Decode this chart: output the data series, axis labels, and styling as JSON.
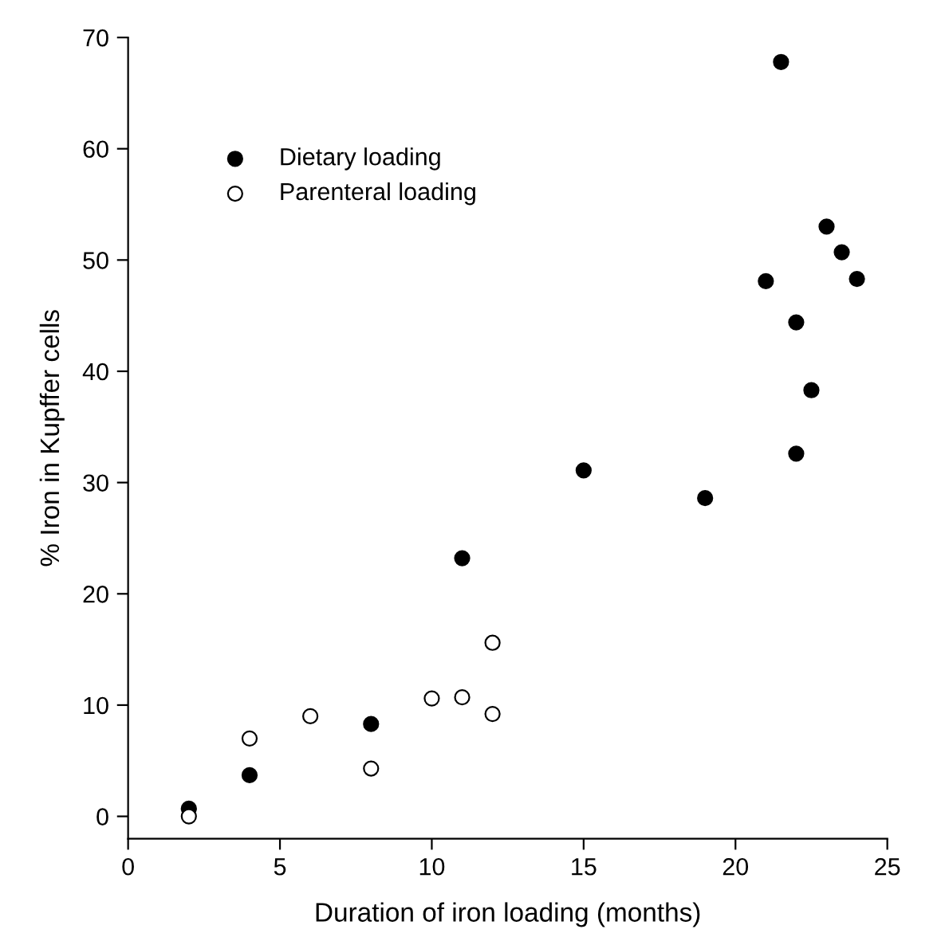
{
  "chart_data": {
    "type": "scatter",
    "xlabel": "Duration of iron loading (months)",
    "ylabel": "% Iron in Kupffer cells",
    "series": [
      {
        "name": "Dietary loading",
        "color": "#000000",
        "x": [
          2,
          4,
          8,
          11,
          15,
          19,
          21,
          21.5,
          22,
          22,
          22.5,
          23,
          23.5,
          24
        ],
        "values": [
          0.7,
          3.7,
          8.3,
          23.2,
          31.1,
          28.6,
          48.1,
          67.8,
          44.4,
          32.6,
          38.3,
          53,
          50.7,
          48.3
        ]
      },
      {
        "name": "Parenteral loading",
        "color": "#ffffff",
        "x": [
          2,
          4,
          6,
          8,
          10,
          11,
          12,
          12
        ],
        "values": [
          0,
          7,
          9,
          4.3,
          10.6,
          10.7,
          9.2,
          15.6
        ]
      }
    ],
    "xlim": [
      0,
      25
    ],
    "xticks": [
      0,
      5,
      10,
      15,
      20,
      25
    ],
    "ylim": [
      -2,
      70
    ],
    "yticks": [
      0,
      10,
      20,
      30,
      40,
      50,
      60,
      70
    ],
    "marker": "circle",
    "legend": "top left",
    "grid": false
  }
}
